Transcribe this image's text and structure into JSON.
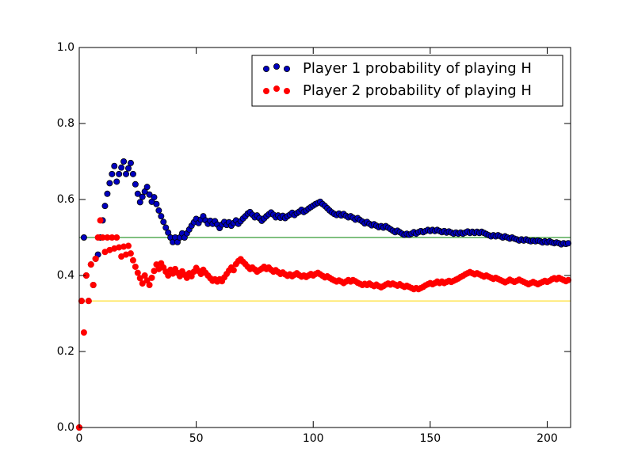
{
  "chart_data": {
    "type": "scatter",
    "xlim": [
      0,
      210
    ],
    "xticks": [
      0,
      50,
      100,
      150,
      200
    ],
    "ylim": [
      0,
      1
    ],
    "yticks": [
      {
        "value": 0,
        "label": "0.0"
      },
      0.2,
      0.4,
      0.6,
      0.8,
      {
        "value": 1,
        "label": "1.0"
      }
    ],
    "legend": "upper right",
    "hlines": [
      {
        "value": 0.5,
        "color": "#008000"
      },
      {
        "value": 0.333,
        "color": "#ffd700"
      }
    ],
    "x": [
      0,
      1,
      2,
      3,
      4,
      5,
      6,
      7,
      8,
      9,
      10,
      11,
      12,
      13,
      14,
      15,
      16,
      17,
      18,
      19,
      20,
      21,
      22,
      23,
      24,
      25,
      26,
      27,
      28,
      29,
      30,
      31,
      32,
      33,
      34,
      35,
      36,
      37,
      38,
      39,
      40,
      41,
      42,
      43,
      44,
      45,
      46,
      47,
      48,
      49,
      50,
      51,
      52,
      53,
      54,
      55,
      56,
      57,
      58,
      59,
      60,
      61,
      62,
      63,
      64,
      65,
      66,
      67,
      68,
      69,
      70,
      71,
      72,
      73,
      74,
      75,
      76,
      77,
      78,
      79,
      80,
      81,
      82,
      83,
      84,
      85,
      86,
      87,
      88,
      89,
      90,
      91,
      92,
      93,
      94,
      95,
      96,
      97,
      98,
      99,
      100,
      101,
      102,
      103,
      104,
      105,
      106,
      107,
      108,
      109,
      110,
      111,
      112,
      113,
      114,
      115,
      116,
      117,
      118,
      119,
      120,
      121,
      122,
      123,
      124,
      125,
      126,
      127,
      128,
      129,
      130,
      131,
      132,
      133,
      134,
      135,
      136,
      137,
      138,
      139,
      140,
      141,
      142,
      143,
      144,
      145,
      146,
      147,
      148,
      149,
      150,
      151,
      152,
      153,
      154,
      155,
      156,
      157,
      158,
      159,
      160,
      161,
      162,
      163,
      164,
      165,
      166,
      167,
      168,
      169,
      170,
      171,
      172,
      173,
      174,
      175,
      176,
      177,
      178,
      179,
      180,
      181,
      182,
      183,
      184,
      185,
      186,
      187,
      188,
      189,
      190,
      191,
      192,
      193,
      194,
      195,
      196,
      197,
      198,
      199,
      200,
      201,
      202,
      203,
      204,
      205,
      206,
      207,
      208,
      209
    ],
    "series": [
      {
        "name": "Player 1 probability of playing H",
        "color": "#0000bf",
        "edgecolor": "#000000",
        "values": [
          0,
          0.333,
          0.5,
          0.4,
          0.333,
          0.429,
          0.375,
          0.444,
          0.455,
          0.5,
          0.545,
          0.583,
          0.615,
          0.643,
          0.667,
          0.688,
          0.647,
          0.667,
          0.684,
          0.7,
          0.667,
          0.682,
          0.696,
          0.667,
          0.64,
          0.615,
          0.593,
          0.607,
          0.621,
          0.633,
          0.613,
          0.594,
          0.606,
          0.588,
          0.571,
          0.556,
          0.541,
          0.526,
          0.513,
          0.5,
          0.488,
          0.5,
          0.488,
          0.5,
          0.511,
          0.5,
          0.511,
          0.521,
          0.531,
          0.54,
          0.549,
          0.538,
          0.547,
          0.556,
          0.545,
          0.536,
          0.544,
          0.536,
          0.543,
          0.534,
          0.525,
          0.534,
          0.541,
          0.533,
          0.54,
          0.531,
          0.538,
          0.545,
          0.536,
          0.543,
          0.55,
          0.556,
          0.563,
          0.567,
          0.56,
          0.553,
          0.558,
          0.551,
          0.544,
          0.55,
          0.556,
          0.561,
          0.566,
          0.56,
          0.553,
          0.558,
          0.552,
          0.557,
          0.551,
          0.556,
          0.56,
          0.565,
          0.559,
          0.564,
          0.568,
          0.573,
          0.567,
          0.571,
          0.576,
          0.58,
          0.584,
          0.588,
          0.591,
          0.594,
          0.588,
          0.583,
          0.577,
          0.571,
          0.566,
          0.562,
          0.559,
          0.563,
          0.558,
          0.562,
          0.557,
          0.553,
          0.556,
          0.552,
          0.547,
          0.551,
          0.546,
          0.542,
          0.537,
          0.541,
          0.536,
          0.532,
          0.535,
          0.531,
          0.527,
          0.53,
          0.526,
          0.53,
          0.526,
          0.522,
          0.518,
          0.514,
          0.518,
          0.514,
          0.51,
          0.507,
          0.51,
          0.507,
          0.51,
          0.514,
          0.51,
          0.514,
          0.517,
          0.514,
          0.517,
          0.52,
          0.517,
          0.52,
          0.517,
          0.52,
          0.517,
          0.514,
          0.517,
          0.513,
          0.516,
          0.513,
          0.51,
          0.513,
          0.51,
          0.513,
          0.51,
          0.513,
          0.516,
          0.512,
          0.515,
          0.512,
          0.515,
          0.512,
          0.515,
          0.512,
          0.509,
          0.506,
          0.503,
          0.506,
          0.503,
          0.506,
          0.503,
          0.5,
          0.503,
          0.5,
          0.497,
          0.5,
          0.497,
          0.495,
          0.492,
          0.495,
          0.492,
          0.495,
          0.492,
          0.49,
          0.492,
          0.49,
          0.492,
          0.49,
          0.487,
          0.49,
          0.487,
          0.49,
          0.487,
          0.485,
          0.487,
          0.485,
          0.482,
          0.485,
          0.483,
          0.485
        ]
      },
      {
        "name": "Player 2 probability of playing H",
        "color": "#ff0000",
        "edgecolor": "#ff0000",
        "values": [
          0,
          0.333,
          0.25,
          0.4,
          0.333,
          0.429,
          0.375,
          0.444,
          0.5,
          0.545,
          0.5,
          0.462,
          0.5,
          0.467,
          0.5,
          0.471,
          0.5,
          0.474,
          0.45,
          0.476,
          0.455,
          0.478,
          0.458,
          0.44,
          0.423,
          0.407,
          0.393,
          0.379,
          0.4,
          0.387,
          0.375,
          0.394,
          0.412,
          0.429,
          0.417,
          0.432,
          0.421,
          0.41,
          0.4,
          0.415,
          0.405,
          0.417,
          0.407,
          0.398,
          0.411,
          0.402,
          0.394,
          0.406,
          0.398,
          0.41,
          0.42,
          0.412,
          0.404,
          0.415,
          0.407,
          0.4,
          0.393,
          0.386,
          0.39,
          0.384,
          0.39,
          0.385,
          0.395,
          0.404,
          0.413,
          0.421,
          0.414,
          0.43,
          0.438,
          0.443,
          0.436,
          0.43,
          0.423,
          0.417,
          0.421,
          0.416,
          0.41,
          0.414,
          0.418,
          0.423,
          0.417,
          0.421,
          0.415,
          0.41,
          0.414,
          0.409,
          0.404,
          0.408,
          0.403,
          0.399,
          0.403,
          0.398,
          0.402,
          0.406,
          0.401,
          0.397,
          0.4,
          0.396,
          0.4,
          0.404,
          0.4,
          0.404,
          0.407,
          0.403,
          0.399,
          0.395,
          0.398,
          0.394,
          0.39,
          0.387,
          0.384,
          0.387,
          0.384,
          0.38,
          0.384,
          0.388,
          0.384,
          0.388,
          0.385,
          0.381,
          0.378,
          0.375,
          0.378,
          0.375,
          0.379,
          0.375,
          0.372,
          0.376,
          0.372,
          0.369,
          0.372,
          0.376,
          0.379,
          0.376,
          0.379,
          0.376,
          0.373,
          0.377,
          0.373,
          0.37,
          0.373,
          0.37,
          0.367,
          0.364,
          0.367,
          0.364,
          0.367,
          0.37,
          0.374,
          0.377,
          0.38,
          0.377,
          0.38,
          0.384,
          0.38,
          0.384,
          0.38,
          0.383,
          0.386,
          0.383,
          0.386,
          0.389,
          0.392,
          0.396,
          0.399,
          0.403,
          0.406,
          0.409,
          0.406,
          0.403,
          0.406,
          0.403,
          0.4,
          0.397,
          0.4,
          0.397,
          0.394,
          0.391,
          0.394,
          0.391,
          0.388,
          0.385,
          0.382,
          0.385,
          0.389,
          0.386,
          0.383,
          0.386,
          0.389,
          0.386,
          0.383,
          0.38,
          0.377,
          0.38,
          0.383,
          0.38,
          0.377,
          0.38,
          0.383,
          0.386,
          0.383,
          0.386,
          0.39,
          0.393,
          0.39,
          0.394,
          0.391,
          0.388,
          0.385,
          0.388
        ]
      }
    ]
  }
}
